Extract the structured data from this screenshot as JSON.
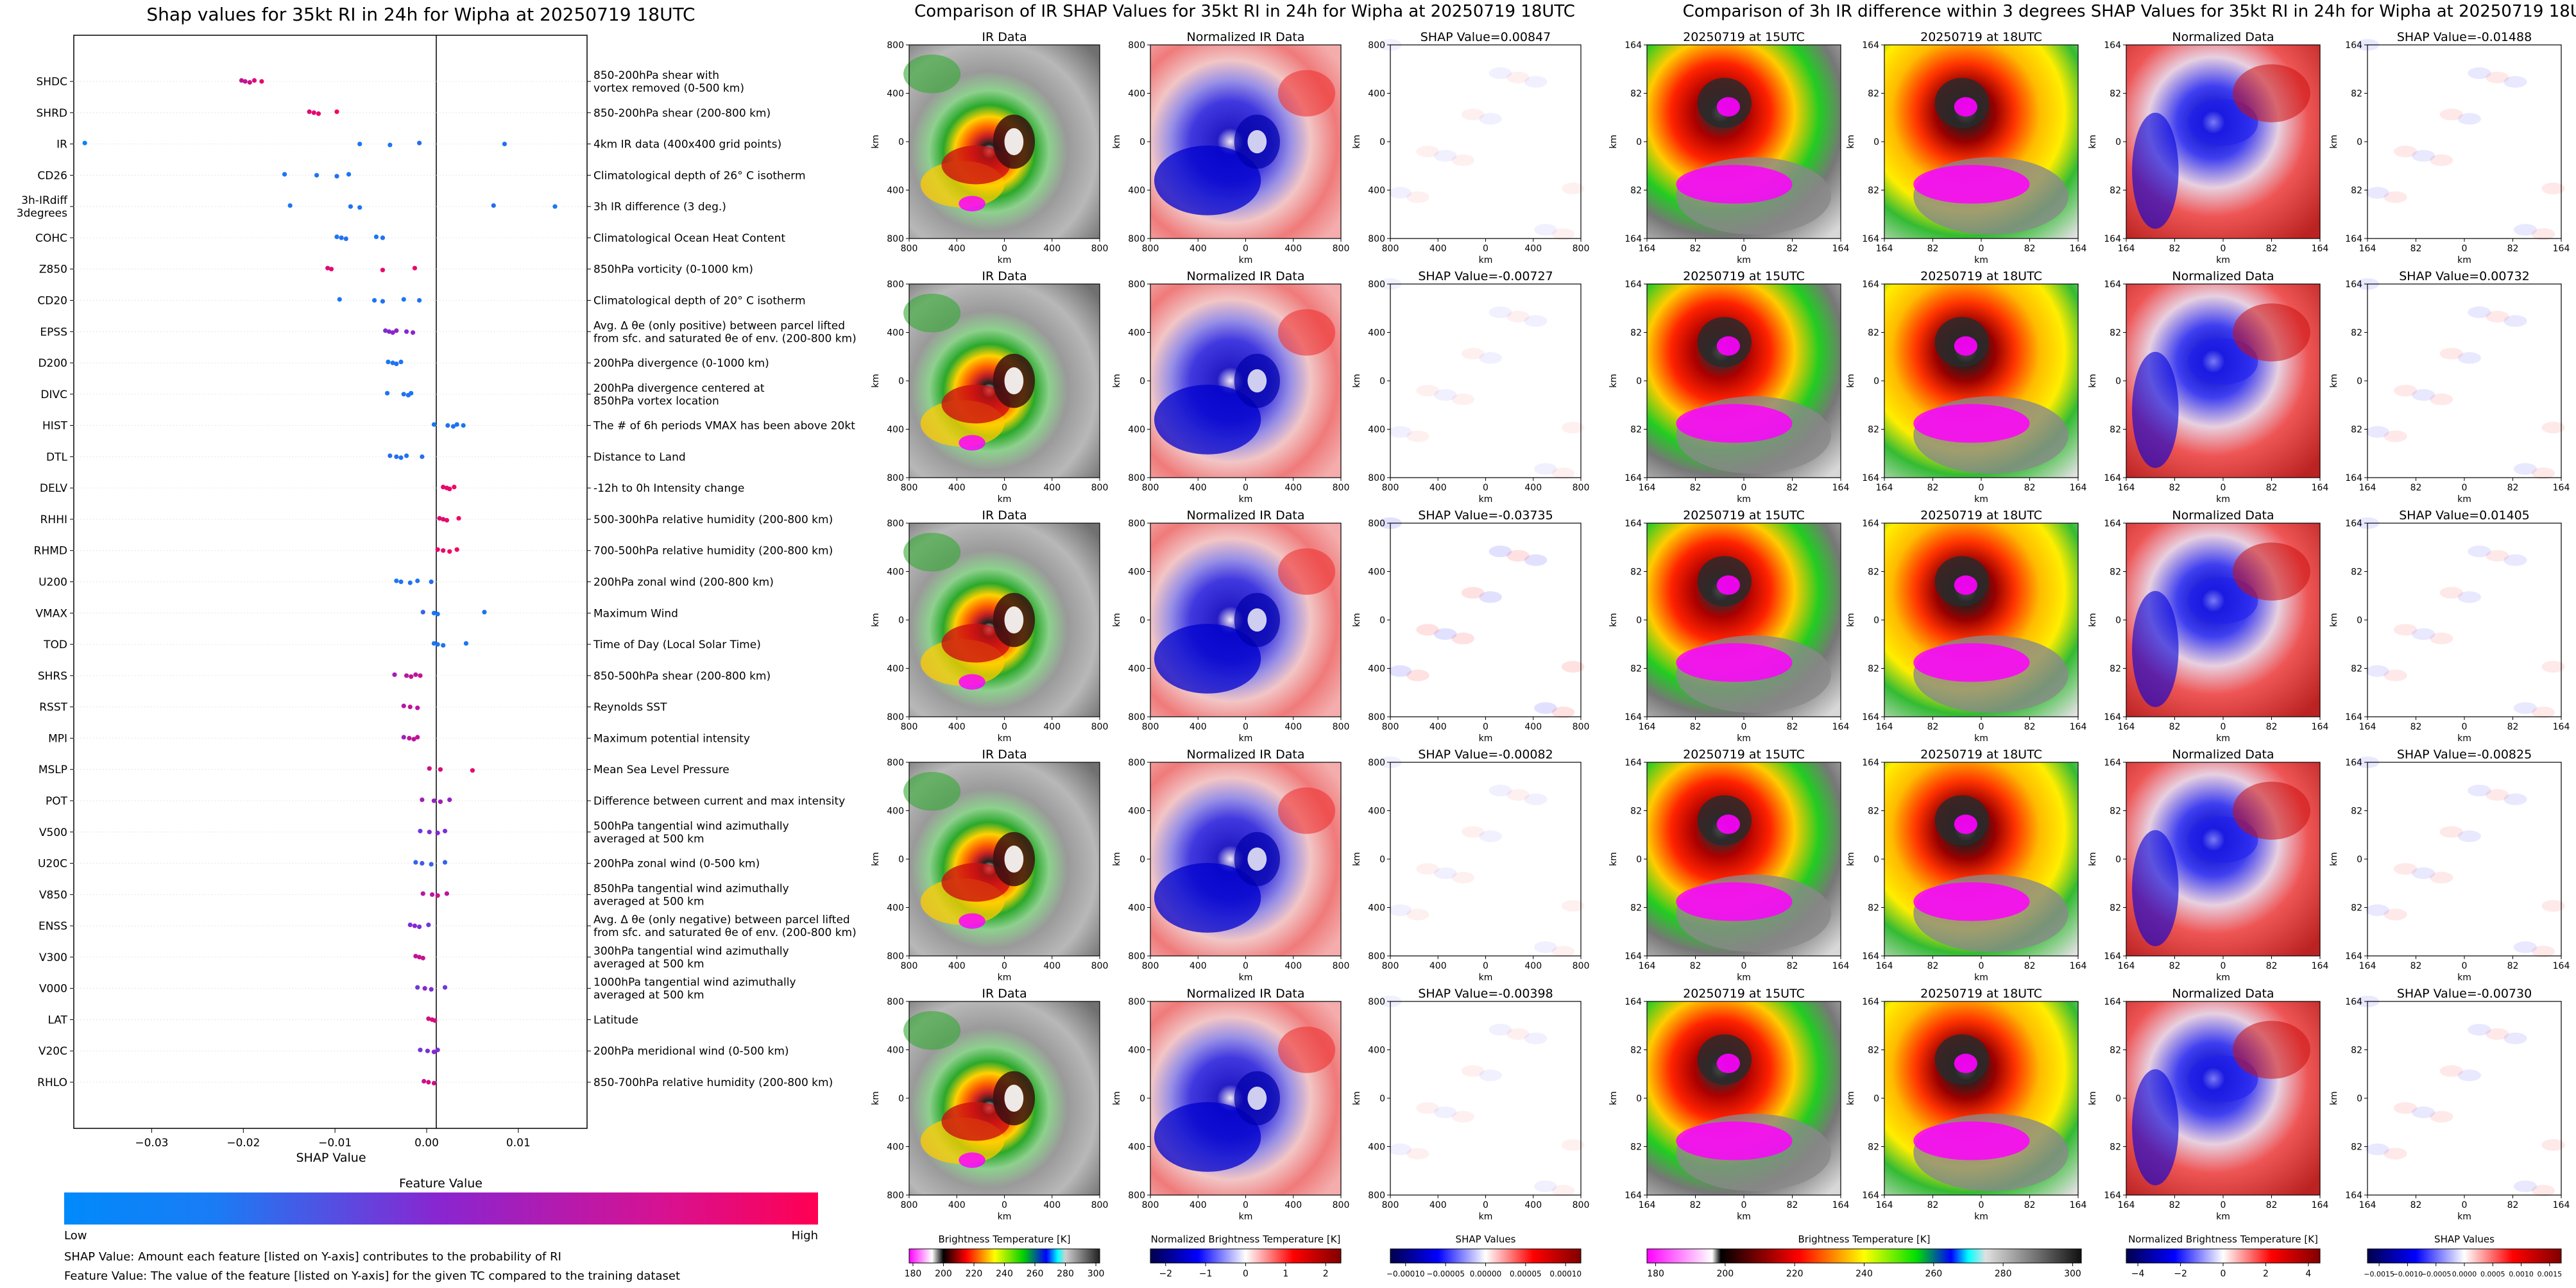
{
  "colors": {
    "low": "#008afb",
    "mid": "#8a25d0",
    "high": "#ff0052",
    "axis": "#000000",
    "grid": "#e6e6e6"
  },
  "left_panel": {
    "title": "Shap values for 35kt RI in 24h for Wipha at 20250719 18UTC",
    "xlabel": "SHAP Value",
    "colorbar_title": "Feature Value",
    "colorbar_low": "Low",
    "colorbar_high": "High",
    "note1": "SHAP Value: Amount each feature [listed on Y-axis] contributes to the probability of RI",
    "note2": "Feature Value: The value of the feature [listed on Y-axis] for the given TC compared to the training dataset"
  },
  "middle_panel": {
    "title": "Comparison of IR SHAP Values for 35kt RI in 24h for Wipha at 20250719 18UTC",
    "col_titles": [
      "IR Data",
      "Normalized IR Data"
    ],
    "shap_titles": [
      "SHAP Value=0.00847",
      "SHAP Value=-0.00727",
      "SHAP Value=-0.03735",
      "SHAP Value=-0.00082",
      "SHAP Value=-0.00398"
    ],
    "axis_label": "km",
    "ticks": [
      "800",
      "400",
      "0",
      "400",
      "800"
    ],
    "colorbars": [
      {
        "label": "Brightness Temperature [K]",
        "ticks": [
          "180",
          "200",
          "220",
          "240",
          "260",
          "280",
          "300"
        ]
      },
      {
        "label": "Normalized Brightness Temperature [K]",
        "ticks": [
          "−2",
          "−1",
          "0",
          "1",
          "2"
        ]
      },
      {
        "label": "SHAP Values",
        "ticks": [
          "−0.00010",
          "−0.00005",
          "0.00000",
          "0.00005",
          "0.00010"
        ]
      }
    ]
  },
  "right_panel": {
    "title": "Comparison of 3h IR difference within 3 degrees SHAP Values for 35kt RI in 24h for Wipha at 20250719 18UTC",
    "col_titles": [
      "20250719 at 15UTC",
      "20250719 at 18UTC",
      "Normalized Data"
    ],
    "shap_titles": [
      "SHAP Value=-0.01488",
      "SHAP Value=0.00732",
      "SHAP Value=0.01405",
      "SHAP Value=-0.00825",
      "SHAP Value=-0.00730"
    ],
    "axis_label": "km",
    "ticks": [
      "164",
      "82",
      "0",
      "82",
      "164"
    ],
    "colorbars": [
      {
        "label": "Brightness Temperature [K]",
        "ticks": [
          "180",
          "200",
          "220",
          "240",
          "260",
          "280",
          "300"
        ]
      },
      {
        "label": "Normalized Brightness Temperature [K]",
        "ticks": [
          "−4",
          "−2",
          "0",
          "2",
          "4"
        ]
      },
      {
        "label": "SHAP Values",
        "ticks": [
          "−0.0015",
          "−0.0010",
          "−0.0005",
          "0.0000",
          "0.0005",
          "0.0010",
          "0.0015"
        ]
      }
    ]
  },
  "chart_data": {
    "type": "scatter",
    "title": "Shap values for 35kt RI in 24h for Wipha at 20250719 18UTC",
    "xlabel": "SHAP Value",
    "ylabel": "",
    "xlim": [
      -0.0385,
      0.0175
    ],
    "xticks": [
      -0.03,
      -0.02,
      -0.01,
      0.0,
      0.01
    ],
    "xtick_labels": [
      "−0.03",
      "−0.02",
      "−0.01",
      "0.00",
      "0.01"
    ],
    "legend": "bottom colorbar (Feature Value: Low to High)",
    "features": [
      {
        "name": "SHDC",
        "desc": [
          "850-200hPa shear with",
          "vortex removed (0-500 km)"
        ],
        "points": [
          [
            -0.0202,
            0.7
          ],
          [
            -0.0198,
            0.75
          ],
          [
            -0.0193,
            0.8
          ],
          [
            -0.0188,
            0.85
          ],
          [
            -0.018,
            0.9
          ]
        ]
      },
      {
        "name": "SHRD",
        "desc": [
          "850-200hPa shear (200-800 km)"
        ],
        "points": [
          [
            -0.0128,
            0.85
          ],
          [
            -0.0123,
            0.88
          ],
          [
            -0.0118,
            0.9
          ],
          [
            -0.0098,
            0.95
          ]
        ]
      },
      {
        "name": "IR",
        "desc": [
          "4km IR data (400x400 grid points)"
        ],
        "points": [
          [
            -0.0373,
            0.05
          ],
          [
            -0.0073,
            0.1
          ],
          [
            -0.004,
            0.1
          ],
          [
            -0.0008,
            0.15
          ],
          [
            0.0085,
            0.12
          ]
        ]
      },
      {
        "name": "CD26",
        "desc": [
          "Climatological depth of 26° C isotherm"
        ],
        "points": [
          [
            -0.0155,
            0.1
          ],
          [
            -0.012,
            0.1
          ],
          [
            -0.0098,
            0.12
          ],
          [
            -0.0085,
            0.1
          ]
        ]
      },
      {
        "name": "3h-IRdiff\n3degrees",
        "desc": [
          "3h IR difference (3 deg.)"
        ],
        "points": [
          [
            -0.0149,
            0.1
          ],
          [
            -0.0083,
            0.12
          ],
          [
            -0.0073,
            0.1
          ],
          [
            0.0073,
            0.15
          ],
          [
            0.014,
            0.1
          ]
        ]
      },
      {
        "name": "COHC",
        "desc": [
          "Climatological Ocean Heat Content"
        ],
        "points": [
          [
            -0.0098,
            0.1
          ],
          [
            -0.0093,
            0.12
          ],
          [
            -0.0088,
            0.12
          ],
          [
            -0.0055,
            0.1
          ],
          [
            -0.0048,
            0.12
          ]
        ]
      },
      {
        "name": "Z850",
        "desc": [
          "850hPa vorticity (0-1000 km)"
        ],
        "points": [
          [
            -0.0108,
            0.85
          ],
          [
            -0.0104,
            0.88
          ],
          [
            -0.0048,
            0.9
          ],
          [
            -0.0013,
            0.9
          ]
        ]
      },
      {
        "name": "CD20",
        "desc": [
          "Climatological depth of 20° C isotherm"
        ],
        "points": [
          [
            -0.0095,
            0.1
          ],
          [
            -0.0057,
            0.1
          ],
          [
            -0.0048,
            0.12
          ],
          [
            -0.0025,
            0.1
          ],
          [
            -0.0008,
            0.12
          ]
        ]
      },
      {
        "name": "EPSS",
        "desc": [
          "Avg. Δ θe (only positive) between parcel lifted",
          "from sfc. and saturated θe of env. (200-800 km)"
        ],
        "points": [
          [
            -0.0045,
            0.45
          ],
          [
            -0.0041,
            0.5
          ],
          [
            -0.0037,
            0.5
          ],
          [
            -0.0033,
            0.55
          ],
          [
            -0.0022,
            0.5
          ],
          [
            -0.0015,
            0.5
          ]
        ]
      },
      {
        "name": "D200",
        "desc": [
          "200hPa divergence (0-1000 km)"
        ],
        "points": [
          [
            -0.0042,
            0.1
          ],
          [
            -0.0037,
            0.12
          ],
          [
            -0.0033,
            0.12
          ],
          [
            -0.0028,
            0.1
          ]
        ]
      },
      {
        "name": "DIVC",
        "desc": [
          "200hPa divergence centered at",
          "850hPa vortex location"
        ],
        "points": [
          [
            -0.0043,
            0.1
          ],
          [
            -0.0025,
            0.12
          ],
          [
            -0.002,
            0.12
          ],
          [
            -0.0017,
            0.1
          ]
        ]
      },
      {
        "name": "HIST",
        "desc": [
          "The # of 6h periods VMAX has been above 20kt"
        ],
        "points": [
          [
            0.0008,
            0.1
          ],
          [
            0.0023,
            0.12
          ],
          [
            0.0029,
            0.12
          ],
          [
            0.0033,
            0.12
          ],
          [
            0.004,
            0.1
          ]
        ]
      },
      {
        "name": "DTL",
        "desc": [
          "Distance to Land"
        ],
        "points": [
          [
            -0.004,
            0.15
          ],
          [
            -0.0033,
            0.15
          ],
          [
            -0.0028,
            0.12
          ],
          [
            -0.0022,
            0.12
          ],
          [
            -0.0005,
            0.15
          ]
        ]
      },
      {
        "name": "DELV",
        "desc": [
          "-12h to 0h Intensity change"
        ],
        "points": [
          [
            0.0018,
            0.9
          ],
          [
            0.0022,
            0.9
          ],
          [
            0.0025,
            0.9
          ],
          [
            0.003,
            0.95
          ]
        ]
      },
      {
        "name": "RHHI",
        "desc": [
          "500-300hPa relative humidity (200-800 km)"
        ],
        "points": [
          [
            0.0014,
            0.85
          ],
          [
            0.0018,
            0.9
          ],
          [
            0.0022,
            0.9
          ],
          [
            0.0035,
            0.95
          ]
        ]
      },
      {
        "name": "RHMD",
        "desc": [
          "700-500hPa relative humidity (200-800 km)"
        ],
        "points": [
          [
            0.0012,
            0.9
          ],
          [
            0.0018,
            0.9
          ],
          [
            0.0025,
            0.95
          ],
          [
            0.0033,
            0.95
          ]
        ]
      },
      {
        "name": "U200",
        "desc": [
          "200hPa zonal wind (200-800 km)"
        ],
        "points": [
          [
            -0.0033,
            0.1
          ],
          [
            -0.0028,
            0.12
          ],
          [
            -0.0018,
            0.12
          ],
          [
            -0.001,
            0.1
          ],
          [
            0.0005,
            0.15
          ]
        ]
      },
      {
        "name": "VMAX",
        "desc": [
          "Maximum Wind"
        ],
        "points": [
          [
            -0.0004,
            0.2
          ],
          [
            0.0008,
            0.1
          ],
          [
            0.0012,
            0.1
          ],
          [
            0.0063,
            0.12
          ]
        ]
      },
      {
        "name": "TOD",
        "desc": [
          "Time of Day (Local Solar Time)"
        ],
        "points": [
          [
            0.0008,
            0.1
          ],
          [
            0.0012,
            0.12
          ],
          [
            0.0018,
            0.12
          ],
          [
            0.0043,
            0.1
          ]
        ]
      },
      {
        "name": "SHRS",
        "desc": [
          "850-500hPa shear (200-800 km)"
        ],
        "points": [
          [
            -0.0035,
            0.6
          ],
          [
            -0.0022,
            0.7
          ],
          [
            -0.0017,
            0.75
          ],
          [
            -0.0012,
            0.7
          ],
          [
            -0.0007,
            0.75
          ]
        ]
      },
      {
        "name": "RSST",
        "desc": [
          "Reynolds SST"
        ],
        "points": [
          [
            -0.0025,
            0.7
          ],
          [
            -0.0018,
            0.75
          ],
          [
            -0.001,
            0.7
          ]
        ]
      },
      {
        "name": "MPI",
        "desc": [
          "Maximum potential intensity"
        ],
        "points": [
          [
            -0.0025,
            0.6
          ],
          [
            -0.0019,
            0.7
          ],
          [
            -0.0014,
            0.7
          ],
          [
            -0.001,
            0.75
          ]
        ]
      },
      {
        "name": "MSLP",
        "desc": [
          "Mean Sea Level Pressure"
        ],
        "points": [
          [
            0.0003,
            0.8
          ],
          [
            0.0015,
            0.85
          ],
          [
            0.005,
            0.9
          ]
        ]
      },
      {
        "name": "POT",
        "desc": [
          "Difference between current and max intensity"
        ],
        "points": [
          [
            -0.0005,
            0.6
          ],
          [
            0.0008,
            0.55
          ],
          [
            0.0015,
            0.6
          ],
          [
            0.0025,
            0.55
          ]
        ]
      },
      {
        "name": "V500",
        "desc": [
          "500hPa tangential wind azimuthally",
          "averaged at 500 km"
        ],
        "points": [
          [
            -0.0007,
            0.4
          ],
          [
            0.0003,
            0.45
          ],
          [
            0.0012,
            0.5
          ],
          [
            0.002,
            0.45
          ]
        ]
      },
      {
        "name": "U20C",
        "desc": [
          "200hPa zonal wind (0-500 km)"
        ],
        "points": [
          [
            -0.0012,
            0.2
          ],
          [
            -0.0005,
            0.25
          ],
          [
            0.0005,
            0.2
          ],
          [
            0.002,
            0.2
          ]
        ]
      },
      {
        "name": "V850",
        "desc": [
          "850hPa tangential wind azimuthally",
          "averaged at 500 km"
        ],
        "points": [
          [
            -0.0004,
            0.7
          ],
          [
            0.0006,
            0.7
          ],
          [
            0.0012,
            0.75
          ],
          [
            0.0022,
            0.7
          ]
        ]
      },
      {
        "name": "ENSS",
        "desc": [
          "Avg. Δ θe (only negative) between parcel lifted",
          "from sfc. and saturated θe of env. (200-800 km)"
        ],
        "points": [
          [
            -0.0018,
            0.45
          ],
          [
            -0.0013,
            0.5
          ],
          [
            -0.0008,
            0.45
          ],
          [
            0.0002,
            0.4
          ]
        ]
      },
      {
        "name": "V300",
        "desc": [
          "300hPa tangential wind azimuthally",
          "averaged at 500 km"
        ],
        "points": [
          [
            -0.0012,
            0.7
          ],
          [
            -0.0008,
            0.75
          ],
          [
            -0.0004,
            0.75
          ]
        ]
      },
      {
        "name": "V000",
        "desc": [
          "1000hPa tangential wind azimuthally",
          "averaged at 500 km"
        ],
        "points": [
          [
            -0.001,
            0.4
          ],
          [
            -0.0002,
            0.5
          ],
          [
            0.0005,
            0.45
          ],
          [
            0.002,
            0.4
          ]
        ]
      },
      {
        "name": "LAT",
        "desc": [
          "Latitude"
        ],
        "points": [
          [
            0.0002,
            0.8
          ],
          [
            0.0006,
            0.85
          ],
          [
            0.0009,
            0.8
          ]
        ]
      },
      {
        "name": "V20C",
        "desc": [
          "200hPa meridional wind (0-500 km)"
        ],
        "points": [
          [
            -0.0007,
            0.4
          ],
          [
            0.0001,
            0.45
          ],
          [
            0.0008,
            0.5
          ],
          [
            0.0012,
            0.45
          ]
        ]
      },
      {
        "name": "RHLO",
        "desc": [
          "850-700hPa relative humidity (200-800 km)"
        ],
        "points": [
          [
            -0.0003,
            0.75
          ],
          [
            0.0002,
            0.8
          ],
          [
            0.0008,
            0.8
          ]
        ]
      }
    ]
  }
}
